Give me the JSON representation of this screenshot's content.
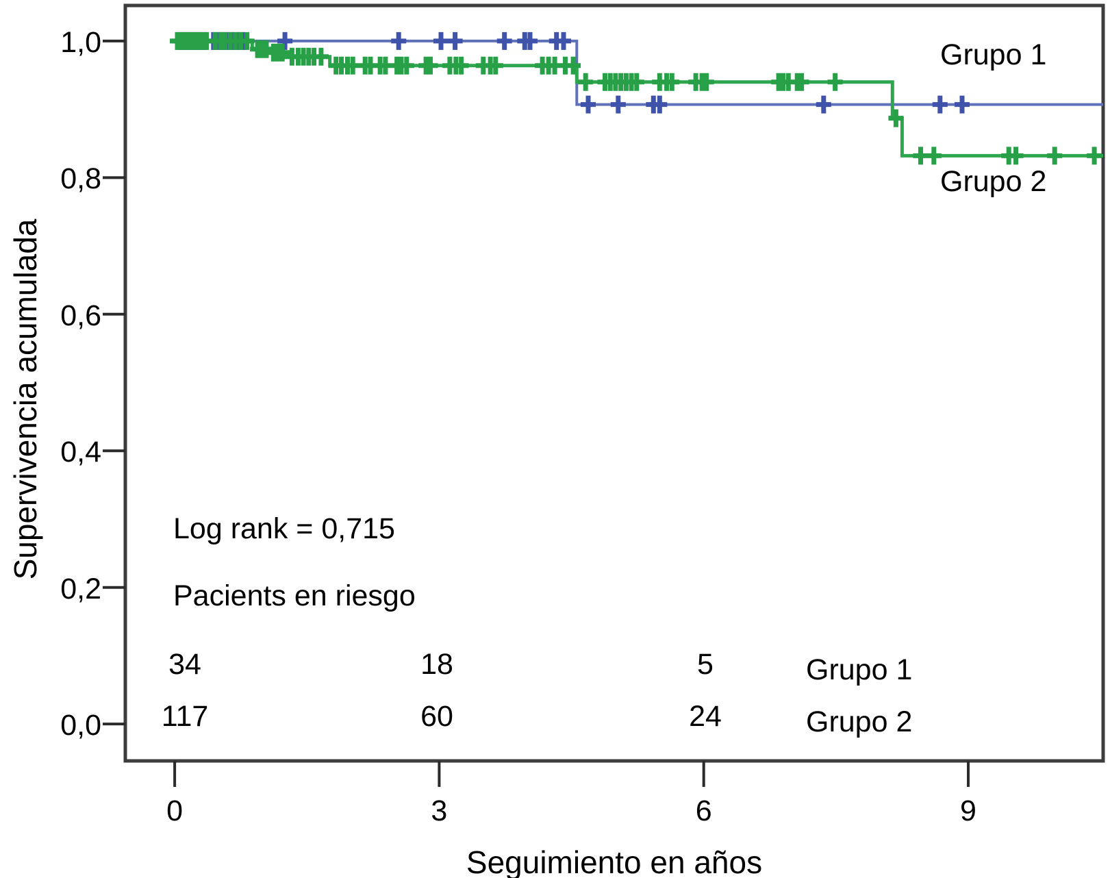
{
  "figure": {
    "background": "#ffffff",
    "text_color": "#000000",
    "frame_color": "#3d3d3d",
    "tick_color": "#2b2b2b"
  },
  "annotations": {
    "log_rank": "Log rank = 0,715",
    "at_risk_title": "Pacients en riesgo"
  },
  "chart_data": {
    "type": "line",
    "subtype": "kaplan-meier-step-survival",
    "title": "",
    "xlabel": "Seguimiento en años",
    "ylabel": "Supervivencia acumulada",
    "xlim": [
      -0.56,
      10.53
    ],
    "ylim": [
      -0.054,
      1.052
    ],
    "grid": false,
    "legend_position": "curve-labels-inline",
    "x_ticks": [
      {
        "value": 0,
        "label": "0"
      },
      {
        "value": 3,
        "label": "3"
      },
      {
        "value": 6,
        "label": "6"
      },
      {
        "value": 9,
        "label": "9"
      }
    ],
    "y_ticks": [
      {
        "value": 1.0,
        "label": "1,0"
      },
      {
        "value": 0.8,
        "label": "0,8"
      },
      {
        "value": 0.6,
        "label": "0,6"
      },
      {
        "value": 0.4,
        "label": "0,4"
      },
      {
        "value": 0.2,
        "label": "0,2"
      },
      {
        "value": 0.0,
        "label": "0,0"
      }
    ],
    "series": [
      {
        "name": "Grupo 1",
        "color": "#5F71B8",
        "censor_color": "#3F53AA",
        "line_width": 4,
        "steps": [
          [
            0,
            1.0
          ],
          [
            4.56,
            1.0
          ],
          [
            4.56,
            0.907
          ],
          [
            10.53,
            0.907
          ]
        ],
        "censors": [
          [
            0.05,
            1.0
          ],
          [
            0.1,
            1.0
          ],
          [
            0.14,
            1.0
          ],
          [
            0.19,
            1.0
          ],
          [
            0.24,
            1.0
          ],
          [
            0.29,
            1.0
          ],
          [
            0.34,
            1.0
          ],
          [
            0.44,
            1.0
          ],
          [
            0.5,
            1.0
          ],
          [
            0.55,
            1.0
          ],
          [
            0.6,
            1.0
          ],
          [
            0.66,
            1.0
          ],
          [
            0.72,
            1.0
          ],
          [
            0.78,
            1.0
          ],
          [
            1.25,
            1.0
          ],
          [
            2.54,
            1.0
          ],
          [
            3.02,
            1.0
          ],
          [
            3.18,
            1.0
          ],
          [
            3.74,
            1.0
          ],
          [
            3.97,
            1.0
          ],
          [
            4.03,
            1.0
          ],
          [
            4.33,
            1.0
          ],
          [
            4.41,
            1.0
          ],
          [
            4.69,
            0.907
          ],
          [
            5.03,
            0.907
          ],
          [
            5.43,
            0.907
          ],
          [
            5.5,
            0.907
          ],
          [
            7.36,
            0.907
          ],
          [
            8.68,
            0.907
          ],
          [
            8.93,
            0.907
          ]
        ]
      },
      {
        "name": "Grupo 2",
        "color": "#2EA64D",
        "censor_color": "#27A047",
        "line_width": 5,
        "steps": [
          [
            0,
            1.0
          ],
          [
            0.88,
            1.0
          ],
          [
            0.88,
            0.988
          ],
          [
            1.09,
            0.988
          ],
          [
            1.09,
            0.983
          ],
          [
            1.27,
            0.983
          ],
          [
            1.27,
            0.977
          ],
          [
            1.76,
            0.977
          ],
          [
            1.76,
            0.964
          ],
          [
            4.56,
            0.964
          ],
          [
            4.56,
            0.94
          ],
          [
            8.14,
            0.94
          ],
          [
            8.14,
            0.887
          ],
          [
            8.25,
            0.887
          ],
          [
            8.25,
            0.832
          ],
          [
            10.53,
            0.832
          ]
        ],
        "censors": [
          [
            0.03,
            1.0
          ],
          [
            0.07,
            1.0
          ],
          [
            0.11,
            1.0
          ],
          [
            0.16,
            1.0
          ],
          [
            0.21,
            1.0
          ],
          [
            0.26,
            1.0
          ],
          [
            0.31,
            1.0
          ],
          [
            0.36,
            1.0
          ],
          [
            0.46,
            1.0
          ],
          [
            0.52,
            1.0
          ],
          [
            0.57,
            1.0
          ],
          [
            0.63,
            1.0
          ],
          [
            0.69,
            1.0
          ],
          [
            0.75,
            1.0
          ],
          [
            0.82,
            1.0
          ],
          [
            0.94,
            0.988
          ],
          [
            0.99,
            0.988
          ],
          [
            1.04,
            0.988
          ],
          [
            1.12,
            0.983
          ],
          [
            1.17,
            0.983
          ],
          [
            1.22,
            0.983
          ],
          [
            1.33,
            0.977
          ],
          [
            1.4,
            0.977
          ],
          [
            1.46,
            0.977
          ],
          [
            1.52,
            0.977
          ],
          [
            1.58,
            0.977
          ],
          [
            1.66,
            0.977
          ],
          [
            1.83,
            0.964
          ],
          [
            1.89,
            0.964
          ],
          [
            1.96,
            0.964
          ],
          [
            2.02,
            0.964
          ],
          [
            2.16,
            0.964
          ],
          [
            2.22,
            0.964
          ],
          [
            2.33,
            0.964
          ],
          [
            2.39,
            0.964
          ],
          [
            2.52,
            0.964
          ],
          [
            2.57,
            0.964
          ],
          [
            2.63,
            0.964
          ],
          [
            2.85,
            0.964
          ],
          [
            2.9,
            0.964
          ],
          [
            3.12,
            0.964
          ],
          [
            3.19,
            0.964
          ],
          [
            3.25,
            0.964
          ],
          [
            3.5,
            0.964
          ],
          [
            3.58,
            0.964
          ],
          [
            3.64,
            0.964
          ],
          [
            4.17,
            0.964
          ],
          [
            4.24,
            0.964
          ],
          [
            4.31,
            0.964
          ],
          [
            4.43,
            0.964
          ],
          [
            4.52,
            0.964
          ],
          [
            4.66,
            0.94
          ],
          [
            4.88,
            0.94
          ],
          [
            4.94,
            0.94
          ],
          [
            5.0,
            0.94
          ],
          [
            5.06,
            0.94
          ],
          [
            5.12,
            0.94
          ],
          [
            5.18,
            0.94
          ],
          [
            5.24,
            0.94
          ],
          [
            5.5,
            0.94
          ],
          [
            5.58,
            0.94
          ],
          [
            5.64,
            0.94
          ],
          [
            5.91,
            0.94
          ],
          [
            5.98,
            0.94
          ],
          [
            6.03,
            0.94
          ],
          [
            6.85,
            0.94
          ],
          [
            6.9,
            0.94
          ],
          [
            6.96,
            0.94
          ],
          [
            7.06,
            0.94
          ],
          [
            7.11,
            0.94
          ],
          [
            7.49,
            0.94
          ],
          [
            8.18,
            0.887
          ],
          [
            8.46,
            0.832
          ],
          [
            8.61,
            0.832
          ],
          [
            9.46,
            0.832
          ],
          [
            9.54,
            0.832
          ],
          [
            9.98,
            0.832
          ],
          [
            10.43,
            0.832
          ]
        ]
      }
    ],
    "at_risk": {
      "times": [
        0,
        3,
        6
      ],
      "rows": [
        {
          "group": "Grupo 1",
          "counts": [
            "34",
            "18",
            "5"
          ]
        },
        {
          "group": "Grupo 2",
          "counts": [
            "117",
            "60",
            "24"
          ]
        }
      ]
    }
  }
}
